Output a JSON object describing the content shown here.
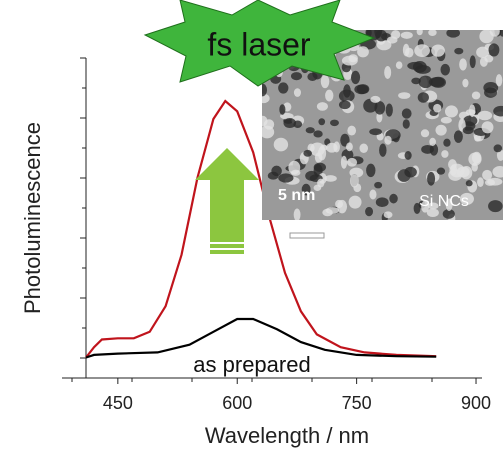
{
  "chart_data": {
    "type": "line",
    "ylabel": "Photoluminescence",
    "xlabel": "Wavelength / nm",
    "annotations": {
      "laser": "fs laser",
      "scale": "5 nm",
      "sample": "Si NCs",
      "curve": "as prepared"
    },
    "xlim": [
      410,
      905
    ],
    "xticks": [
      450,
      600,
      750,
      900
    ],
    "ylim": [
      -0.08,
      1.16
    ],
    "series": [
      {
        "name": "fs laser",
        "color": "#c0141c",
        "x": [
          410,
          420,
          430,
          450,
          470,
          490,
          510,
          530,
          550,
          570,
          585,
          600,
          620,
          640,
          660,
          680,
          700,
          730,
          760,
          800,
          850
        ],
        "values": [
          0,
          0.04,
          0.07,
          0.075,
          0.075,
          0.1,
          0.2,
          0.4,
          0.7,
          0.93,
          1.0,
          0.96,
          0.8,
          0.55,
          0.33,
          0.18,
          0.09,
          0.04,
          0.02,
          0.01,
          0.005
        ]
      },
      {
        "name": "as prepared",
        "color": "#000000",
        "x": [
          410,
          420,
          450,
          500,
          540,
          570,
          600,
          620,
          650,
          680,
          710,
          750,
          800,
          850
        ],
        "values": [
          0,
          0.01,
          0.015,
          0.02,
          0.05,
          0.1,
          0.15,
          0.15,
          0.11,
          0.06,
          0.03,
          0.01,
          0.005,
          0.003
        ]
      }
    ]
  }
}
